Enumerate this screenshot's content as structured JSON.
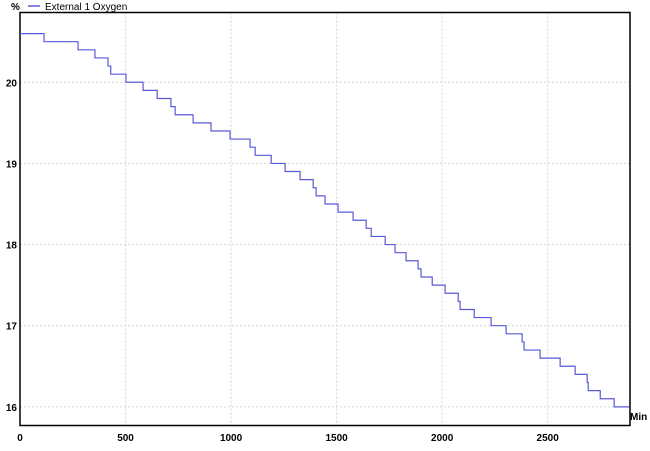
{
  "chart_data": {
    "type": "line",
    "title": "",
    "xlabel": "Min",
    "ylabel": "%",
    "xlim": [
      0,
      2890
    ],
    "ylim": [
      15.77,
      20.86
    ],
    "x_ticks": [
      0,
      500,
      1000,
      1500,
      2000,
      2500
    ],
    "y_ticks": [
      16,
      17,
      18,
      19,
      20
    ],
    "grid": true,
    "legend_position": "top-left",
    "series": [
      {
        "name": "External 1 Oxygen",
        "color": "#5a5ad8",
        "step": true,
        "points": [
          [
            0,
            20.6
          ],
          [
            114,
            20.5
          ],
          [
            275,
            20.4
          ],
          [
            355,
            20.3
          ],
          [
            417,
            20.2
          ],
          [
            430,
            20.1
          ],
          [
            502,
            20.0
          ],
          [
            583,
            19.9
          ],
          [
            650,
            19.8
          ],
          [
            715,
            19.7
          ],
          [
            735,
            19.6
          ],
          [
            820,
            19.5
          ],
          [
            905,
            19.4
          ],
          [
            995,
            19.3
          ],
          [
            1090,
            19.2
          ],
          [
            1114,
            19.1
          ],
          [
            1190,
            19.0
          ],
          [
            1256,
            18.9
          ],
          [
            1327,
            18.8
          ],
          [
            1389,
            18.7
          ],
          [
            1403,
            18.6
          ],
          [
            1445,
            18.5
          ],
          [
            1507,
            18.4
          ],
          [
            1578,
            18.3
          ],
          [
            1640,
            18.2
          ],
          [
            1664,
            18.1
          ],
          [
            1730,
            18.0
          ],
          [
            1777,
            17.9
          ],
          [
            1829,
            17.8
          ],
          [
            1886,
            17.7
          ],
          [
            1900,
            17.6
          ],
          [
            1953,
            17.5
          ],
          [
            2014,
            17.4
          ],
          [
            2076,
            17.3
          ],
          [
            2085,
            17.2
          ],
          [
            2152,
            17.1
          ],
          [
            2232,
            17.0
          ],
          [
            2303,
            16.9
          ],
          [
            2379,
            16.8
          ],
          [
            2388,
            16.7
          ],
          [
            2464,
            16.6
          ],
          [
            2559,
            16.5
          ],
          [
            2630,
            16.4
          ],
          [
            2687,
            16.3
          ],
          [
            2692,
            16.2
          ],
          [
            2749,
            16.1
          ],
          [
            2815,
            16.0
          ],
          [
            2886,
            16.0
          ]
        ]
      }
    ]
  }
}
